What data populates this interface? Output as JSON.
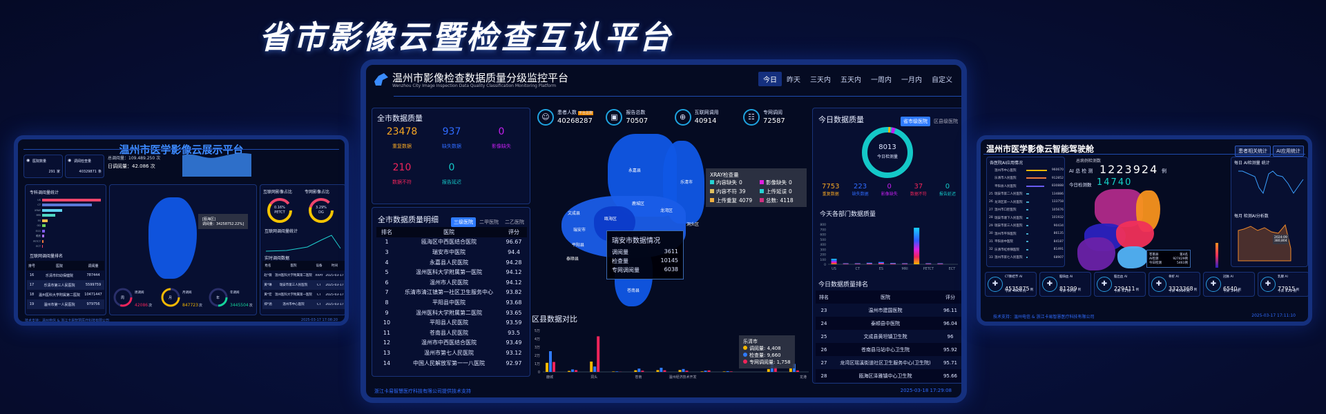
{
  "main_title": "省市影像云暨检查互认平台",
  "colors": {
    "accent": "#2f7bff",
    "orange": "#f5a623",
    "blue": "#2f6bff",
    "magenta": "#c21ff0",
    "red": "#f0245a",
    "teal": "#14c8c8"
  },
  "left": {
    "title": "温州市医学影像云展示平台",
    "cards": [
      {
        "label": "医院数量",
        "value": "291",
        "unit": "家",
        "icon": "hospital-icon"
      },
      {
        "label": "调阅检查量",
        "value": "40329871",
        "unit": "条",
        "icon": "check-icon"
      }
    ],
    "total_label": "总调阅量：109.489.250 次",
    "daily_label": "日调阅量：42.086 次",
    "bar_title": "专科调阅量统计",
    "bars": [
      {
        "label": "US",
        "value": 100,
        "color": "#f0456b"
      },
      {
        "label": "CT",
        "value": 85,
        "color": "#5a78d8"
      },
      {
        "label": "XRAY",
        "value": 34,
        "color": "#5fd3f0"
      },
      {
        "label": "MRI",
        "value": 22,
        "color": "#4fd6c4"
      },
      {
        "label": "ES",
        "value": 9,
        "color": "#f5c04a"
      },
      {
        "label": "OD",
        "value": 6,
        "color": "#6fd35a"
      },
      {
        "label": "ECG",
        "value": 5,
        "color": "#7d5cf0"
      },
      {
        "label": "眼底",
        "value": 3,
        "color": "#a86cf0"
      },
      {
        "label": "PETCT",
        "value": 2,
        "color": "#f07a3a"
      },
      {
        "label": "ECT",
        "value": 1,
        "color": "#f0456b"
      }
    ],
    "rank_title": "互联网调阅量排名",
    "rank_headers": [
      "排号",
      "医院",
      "调阅量"
    ],
    "rank_rows": [
      [
        "16",
        "乐清市妇幼保健院",
        "787444"
      ],
      [
        "17",
        "乐清市第三人民医院",
        "5599759"
      ],
      [
        "18",
        "温州医科大学附属第二医院",
        "10471447"
      ],
      [
        "19",
        "温州市第一人民医院",
        "979756"
      ]
    ],
    "map_tooltip": [
      "[瓯海区]",
      "调阅量：34258752.22%]"
    ],
    "gauges": [
      {
        "char": "周",
        "label": "周调阅",
        "value": "42086",
        "unit": "次",
        "color": "#f0245a",
        "pct": 0.3
      },
      {
        "char": "月",
        "label": "月调阅",
        "value": "847723",
        "unit": "次",
        "color": "#f5b800",
        "pct": 0.75
      },
      {
        "char": "年",
        "label": "年调阅",
        "value": "3445504",
        "unit": "次",
        "color": "#14d39a",
        "pct": 0.25
      }
    ],
    "donut1": {
      "title": "互联网影像占比",
      "pct": "0.16%",
      "name": "PETCT"
    },
    "donut2": {
      "title": "专网影像占比",
      "pct": "3.29%",
      "name": "DG"
    },
    "line_title": "互联网调阅量统计",
    "realtime_title": "实时调阅数据",
    "realtime_headers": [
      "姓名",
      "医院",
      "设备",
      "时间"
    ],
    "realtime_rows": [
      [
        "赵*薇",
        "温州医科大学附属第二医院",
        "XRAY",
        "2025-03-17"
      ],
      [
        "黄*琳",
        "瑞安市第三人民医院",
        "CT",
        "2025-03-17"
      ],
      [
        "黄*宏",
        "温州医科大学附属第一医院",
        "CT",
        "2025-03-17"
      ],
      [
        "郑*涵",
        "温州市中心医院",
        "CT",
        "2025-03-17"
      ]
    ],
    "footer": "技术支持：温州电信 & 浙江卡易智慧医疗科技有限公司",
    "date": "2025-03-17 17:08:20"
  },
  "center": {
    "title": "温州市影像检查数据质量分级监控平台",
    "subtitle": "Wenzhou City Image Inspection Data Quality Classification Monitoring Platform",
    "tabs": [
      "今日",
      "昨天",
      "三天内",
      "五天内",
      "一周内",
      "一月内",
      "自定义"
    ],
    "active_tab": 0,
    "quality": {
      "title": "全市数据质量",
      "items": [
        {
          "value": "23478",
          "label": "重复数据",
          "color": "#f5a623"
        },
        {
          "value": "937",
          "label": "缺失数据",
          "color": "#2f6bff"
        },
        {
          "value": "0",
          "label": "影像缺失",
          "color": "#c21ff0"
        },
        {
          "value": "210",
          "label": "数据不符",
          "color": "#f0245a"
        },
        {
          "value": "0",
          "label": "报告延迟",
          "color": "#14c8c8"
        }
      ]
    },
    "stats": [
      {
        "label": "患者人数",
        "badge": "平台总数",
        "value": "40268287",
        "icon": "patients-icon"
      },
      {
        "label": "报告总数",
        "value": "70507",
        "icon": "report-icon"
      },
      {
        "label": "互联网调用",
        "value": "40914",
        "icon": "globe-icon"
      },
      {
        "label": "专网调阅",
        "value": "72587",
        "icon": "network-icon"
      }
    ],
    "detail": {
      "title": "全市数据质量明细",
      "tabs": [
        "三级医院",
        "二甲医院",
        "二乙医院"
      ],
      "headers": [
        "排名",
        "医院",
        "评分"
      ],
      "rows": [
        [
          "1",
          "瓯海区中西医结合医院",
          "96.67"
        ],
        [
          "3",
          "瑞安市中医院",
          "94.4"
        ],
        [
          "4",
          "永嘉县人民医院",
          "94.28"
        ],
        [
          "5",
          "温州医科大学附属第一医院",
          "94.12"
        ],
        [
          "6",
          "温州市人民医院",
          "94.12"
        ],
        [
          "7",
          "乐清市清江镇第一社区卫生服务中心",
          "93.82"
        ],
        [
          "8",
          "平阳县中医院",
          "93.68"
        ],
        [
          "9",
          "温州医科大学附属第二医院",
          "93.65"
        ],
        [
          "10",
          "平阳县人民医院",
          "93.59"
        ],
        [
          "11",
          "苍南县人民医院",
          "93.5"
        ],
        [
          "12",
          "温州市中西医结合医院",
          "93.49"
        ],
        [
          "13",
          "温州市第七人民医院",
          "93.12"
        ],
        [
          "14",
          "中国人民解放军第一一八医院",
          "92.97"
        ]
      ]
    },
    "map_labels": [
      "永嘉县",
      "乐清市",
      "鹿城区",
      "瓯海区",
      "龙湾区",
      "洞头区",
      "文成县",
      "瑞安市",
      "平阳县",
      "泰顺县",
      "苍南县"
    ],
    "city_tooltip": {
      "title": "瑞安市数据情况",
      "rows": [
        [
          "调阅量",
          "3611"
        ],
        [
          "检查量",
          "10145"
        ],
        [
          "专网调阅量",
          "6038"
        ]
      ]
    },
    "xray_tooltip": {
      "title": "XRAY检查量",
      "items": [
        [
          "内容缺失",
          "0",
          "#27d3d3"
        ],
        [
          "影像缺失",
          "0",
          "#e020e0"
        ],
        [
          "内容不符",
          "39",
          "#e0c060"
        ],
        [
          "上传延误",
          "0",
          "#27d3d3"
        ],
        [
          "上传重复",
          "4079",
          "#f0b040"
        ],
        [
          "总数:",
          "4118",
          "#d03080"
        ]
      ]
    },
    "district_chart_title": "区县数据对比",
    "district_tooltip": {
      "title": "乐清市",
      "rows": [
        [
          "调阅量: 4,408",
          "#f5b800"
        ],
        [
          "检查量: 9,660",
          "#2f7bff"
        ],
        [
          "专网调阅量: 1,758",
          "#f0245a"
        ]
      ]
    },
    "today": {
      "title": "今日数据质量",
      "tabs": [
        "省市级医院",
        "区县级医院"
      ],
      "total": "8013",
      "total_label": "今日检测量",
      "items": [
        {
          "value": "7753",
          "label": "重复数据",
          "color": "#f5a623"
        },
        {
          "value": "223",
          "label": "缺失数据",
          "color": "#2f6bff"
        },
        {
          "value": "0",
          "label": "影像缺失",
          "color": "#c21ff0"
        },
        {
          "value": "37",
          "label": "数据不符",
          "color": "#f0245a"
        },
        {
          "value": "0",
          "label": "报告延迟",
          "color": "#14c8c8"
        }
      ]
    },
    "dept_chart_title": "今天各部门数据质量",
    "rank_title": "今日数据质量排名",
    "rank_headers": [
      "排名",
      "医院",
      "评分"
    ],
    "rank_rows": [
      [
        "23",
        "温州市建国医院",
        "96.11"
      ],
      [
        "24",
        "泰顺县中医院",
        "96.04"
      ],
      [
        "25",
        "文成县黄坦镇卫生院",
        "96"
      ],
      [
        "26",
        "苍南县马站中心卫生院",
        "95.92"
      ],
      [
        "27",
        "龙湾区瑶溪街道社区卫生服务中心(卫生院)",
        "95.71"
      ],
      [
        "28",
        "瓯海区泽雅镇中心卫生院",
        "95.66"
      ]
    ],
    "footer": "浙江卡易智慧医疗科技有限公司提供技术支持",
    "date": "2025-03-18 17:29:08"
  },
  "right": {
    "title": "温州市医学影像云智能驾驶舱",
    "buttons": [
      "患者相关统计",
      "AI应用统计"
    ],
    "ai_list_title": "各医院AI应用情况",
    "ai_list": [
      [
        "",
        "温州市中心医院",
        "960670"
      ],
      [
        "",
        "乐清市人民医院",
        "912852"
      ],
      [
        "",
        "平阳县人民医院",
        "830888"
      ],
      [
        "25",
        "瑞安市第二人民医院",
        "134886"
      ],
      [
        "26",
        "龙湾区第一人民医院",
        "133758"
      ],
      [
        "27",
        "温州市口腔医院",
        "105676"
      ],
      [
        "28",
        "瑞安市塘下人民医院",
        "101932"
      ],
      [
        "29",
        "瑞安市第三人民医院",
        "90434"
      ],
      [
        "30",
        "温州市平阳医院",
        "86135"
      ],
      [
        "31",
        "平阳县中医院",
        "84187"
      ],
      [
        "32",
        "乐清市虹桥镇医院",
        "81491"
      ],
      [
        "33",
        "温州市第七人民医院",
        "68907"
      ]
    ],
    "total_label": "总病例检测数",
    "ai_total_label": "AI 总 检 测",
    "ai_total": "1223924",
    "ai_total_unit": "例",
    "today_label": "今日检测数",
    "today_value": "14740",
    "map_tooltip": {
      "name": "苍南县",
      "rank": "第4名",
      "rows": [
        [
          "AI检测",
          "927429例"
        ],
        [
          "今日检测",
          "5461例"
        ]
      ]
    },
    "daily_title": "每日 AI检测量 统计",
    "monthly_title": "每月 检测AI分析数",
    "monthly_tip": [
      "2024-09",
      "380,804"
    ],
    "cards": [
      {
        "title": "CT肺结节 AI",
        "value": "4535875",
        "today": "4608",
        "icon": "lungs-icon"
      },
      {
        "title": "脑缺血 AI",
        "value": "81299",
        "today": "30",
        "icon": "brain-icon"
      },
      {
        "title": "脑出血 AI",
        "value": "229411",
        "today": "31",
        "icon": "brain-icon"
      },
      {
        "title": "骨折 AI",
        "value": "3323368",
        "today": "4590",
        "icon": "bone-icon"
      },
      {
        "title": "冠脉 AI",
        "value": "6540",
        "today": "34",
        "icon": "heart-icon"
      },
      {
        "title": "乳腺 AI",
        "value": "77915",
        "today": "222",
        "icon": "breast-scan-icon"
      }
    ],
    "unit": "例",
    "today_prefix": "今日",
    "footer": "技术支持：温州电信 & 浙江卡易智慧医疗科技有限公司",
    "date": "2025-03-17 17:11:10"
  },
  "chart_data": [
    {
      "type": "bar",
      "title": "区县数据对比",
      "ylim": [
        0,
        50000
      ],
      "yticks": [
        "0",
        "1万",
        "2万",
        "3万",
        "4万",
        "5万"
      ],
      "categories": [
        "鹿城",
        "",
        "洞头",
        "",
        "苍南",
        "",
        "温州经济技术开发",
        "",
        "",
        "",
        "",
        "乐清市"
      ],
      "xtick_labels": [
        "鹿城",
        "洞头",
        "苍南",
        "温州经济技术开发",
        "龙港"
      ],
      "series": [
        {
          "name": "调阅量",
          "color": "#f5b800",
          "values": [
            11000,
            1200,
            12500,
            500,
            2000,
            2200,
            2300,
            600,
            500,
            0,
            3500,
            4408
          ]
        },
        {
          "name": "检查量",
          "color": "#2f7bff",
          "values": [
            25000,
            3000,
            6500,
            600,
            4000,
            5000,
            3500,
            1500,
            900,
            0,
            10000,
            9660
          ]
        },
        {
          "name": "专网调阅量",
          "color": "#f0245a",
          "values": [
            12000,
            2200,
            43000,
            200,
            1500,
            2000,
            1500,
            1800,
            600,
            0,
            6000,
            1758
          ]
        }
      ]
    },
    {
      "type": "bar",
      "title": "今天各部门数据质量",
      "ylim": [
        0,
        800
      ],
      "yticks": [
        "0",
        "100",
        "200",
        "300",
        "400",
        "500",
        "600",
        "700",
        "800"
      ],
      "categories": [
        "US",
        "",
        "CT",
        "",
        "ES",
        "",
        "MRI",
        "",
        "PETCT",
        "",
        "ECT"
      ],
      "values": [
        110,
        20,
        20,
        30,
        45,
        25,
        20,
        730,
        20,
        20,
        0
      ]
    }
  ]
}
